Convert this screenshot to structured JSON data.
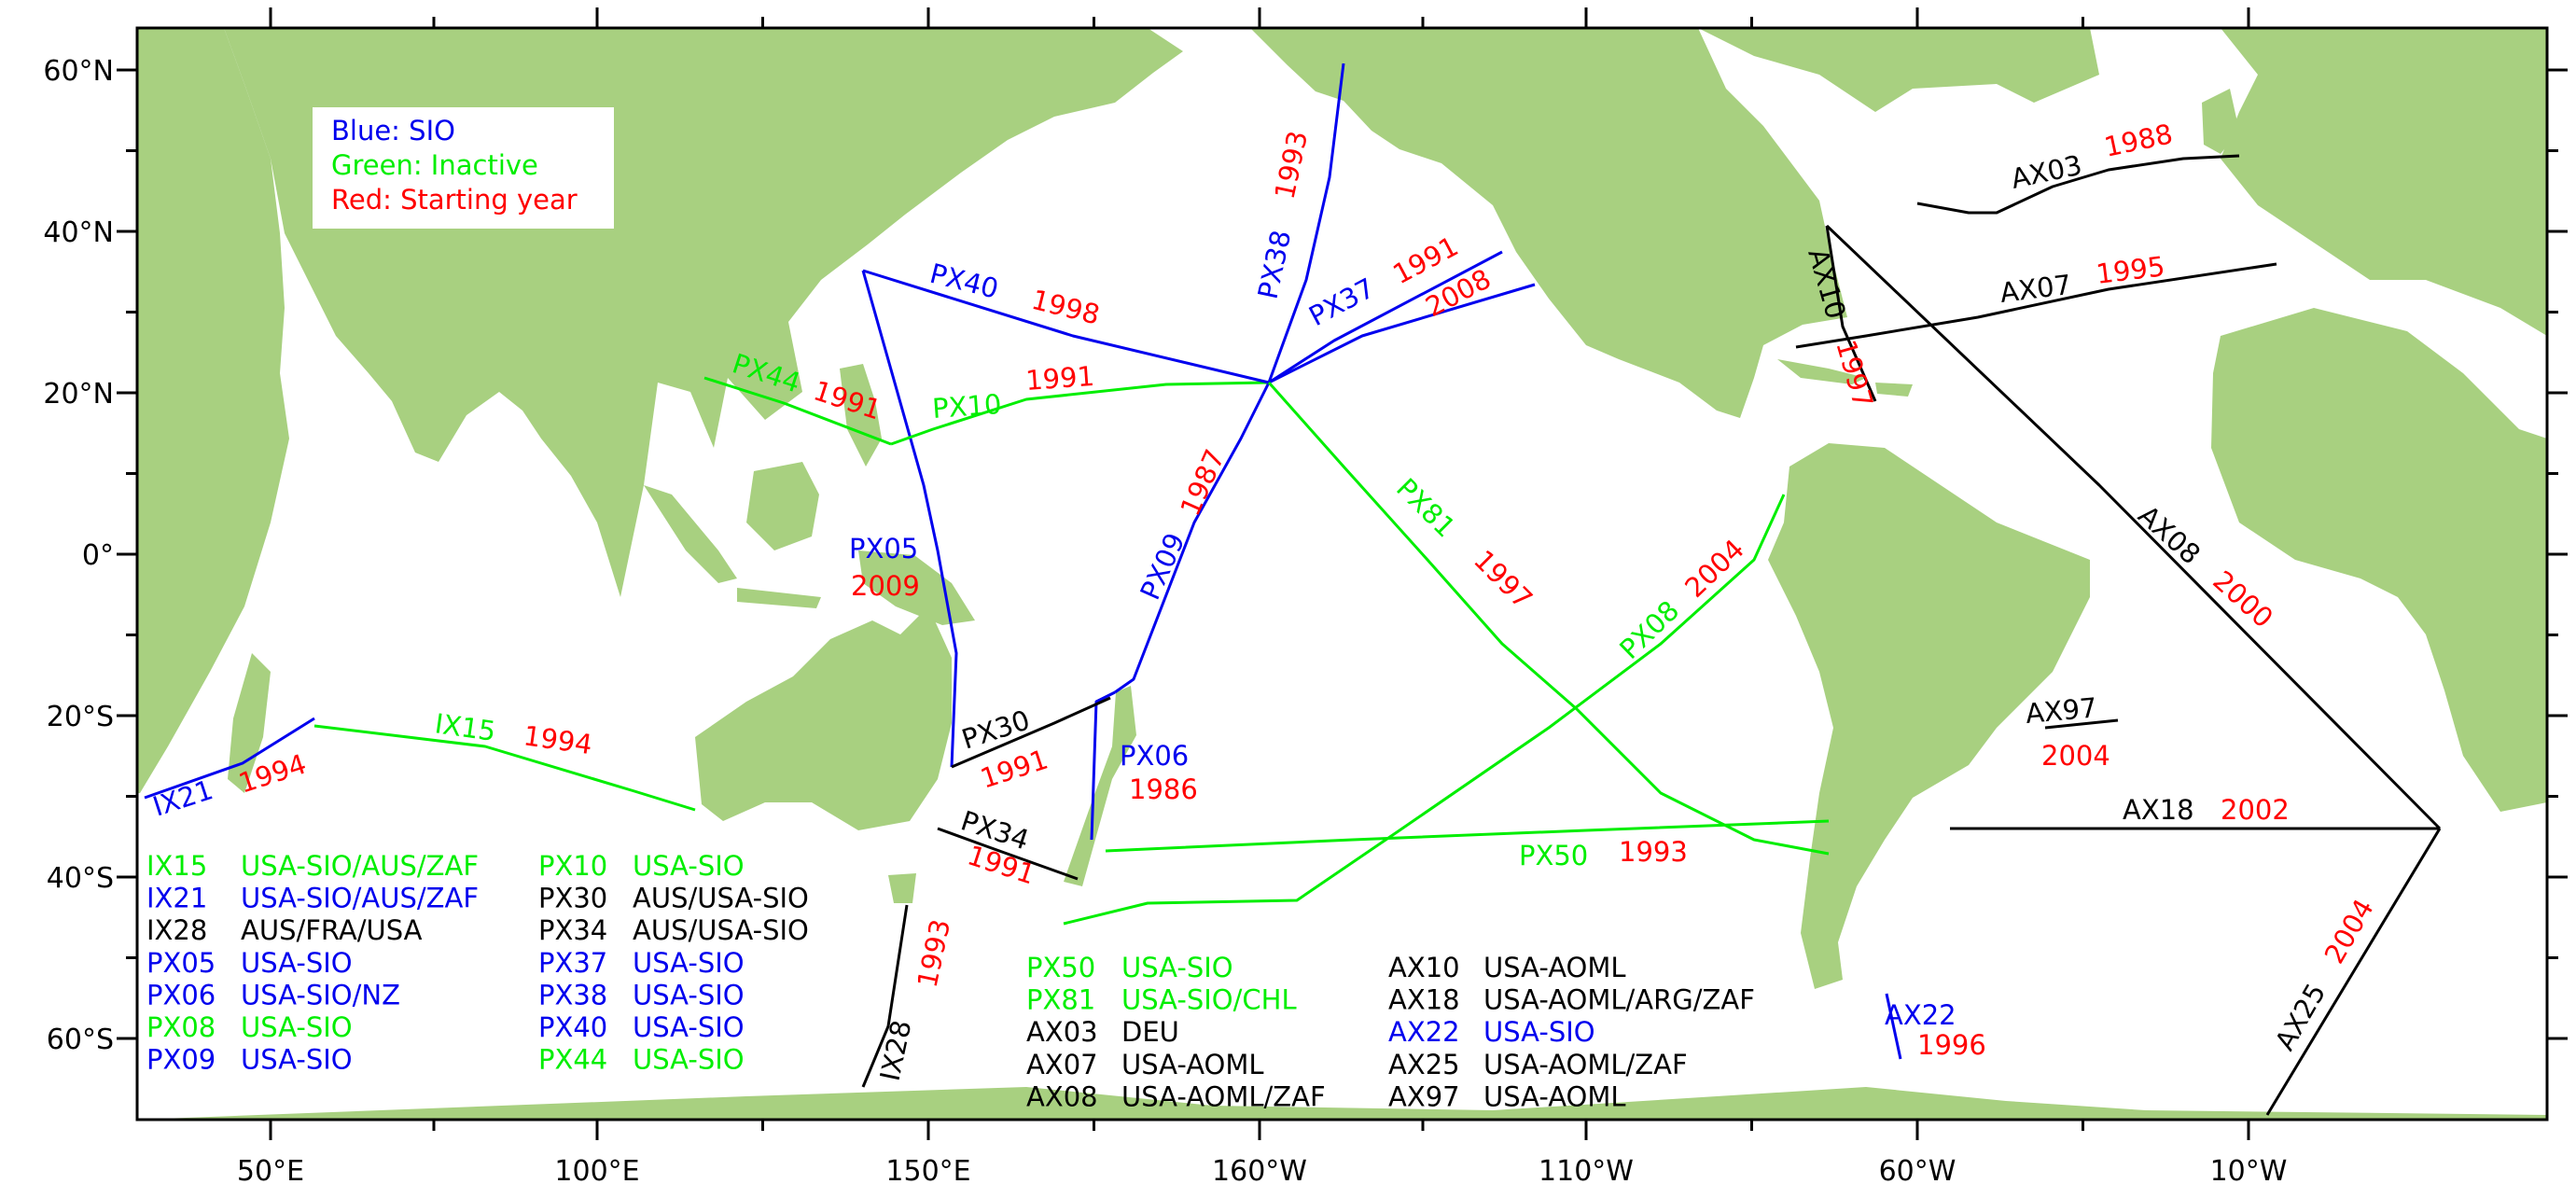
{
  "colors": {
    "land": "#a8d080",
    "sio": "#0000ee",
    "inactive": "#00ee00",
    "year": "#ff0000",
    "other": "#000000"
  },
  "legend": {
    "blue": "Blue: SIO",
    "green": "Green: Inactive",
    "red": "Red: Starting year"
  },
  "axes": {
    "x_ticks": [
      "50°E",
      "100°E",
      "150°E",
      "160°W",
      "110°W",
      "60°W",
      "10°W"
    ],
    "y_ticks": [
      "60°N",
      "40°N",
      "20°N",
      "0°",
      "20°S",
      "40°S",
      "60°S"
    ]
  },
  "lines": [
    {
      "id": "IX15",
      "year": "1994",
      "group": "inactive"
    },
    {
      "id": "IX21",
      "year": "1994",
      "group": "sio"
    },
    {
      "id": "IX28",
      "year": "1993",
      "group": "other"
    },
    {
      "id": "PX05",
      "year": "2009",
      "group": "sio"
    },
    {
      "id": "PX06",
      "year": "1986",
      "group": "sio"
    },
    {
      "id": "PX08",
      "year": "2004",
      "group": "inactive"
    },
    {
      "id": "PX09",
      "year": "1987",
      "group": "sio"
    },
    {
      "id": "PX10",
      "year": "1991",
      "group": "inactive"
    },
    {
      "id": "PX30",
      "year": "1991",
      "group": "other"
    },
    {
      "id": "PX34",
      "year": "1991",
      "group": "other"
    },
    {
      "id": "PX37",
      "year": "1991",
      "year2": "2008",
      "group": "sio"
    },
    {
      "id": "PX38",
      "year": "1993",
      "group": "sio"
    },
    {
      "id": "PX40",
      "year": "1998",
      "group": "sio"
    },
    {
      "id": "PX44",
      "year": "1991",
      "group": "inactive"
    },
    {
      "id": "PX50",
      "year": "1993",
      "group": "inactive"
    },
    {
      "id": "PX81",
      "year": "1997",
      "group": "inactive"
    },
    {
      "id": "AX03",
      "year": "1988",
      "group": "other"
    },
    {
      "id": "AX07",
      "year": "1995",
      "group": "other"
    },
    {
      "id": "AX08",
      "year": "2000",
      "group": "other"
    },
    {
      "id": "AX10",
      "year": "1997",
      "group": "other"
    },
    {
      "id": "AX18",
      "year": "2002",
      "group": "other"
    },
    {
      "id": "AX22",
      "year": "1996",
      "group": "sio"
    },
    {
      "id": "AX25",
      "year": "2004",
      "group": "other"
    },
    {
      "id": "AX97",
      "year": "2004",
      "group": "other"
    }
  ],
  "operators": [
    {
      "id": "IX15",
      "org": "USA-SIO/AUS/ZAF",
      "group": "inactive"
    },
    {
      "id": "IX21",
      "org": "USA-SIO/AUS/ZAF",
      "group": "sio"
    },
    {
      "id": "IX28",
      "org": "AUS/FRA/USA",
      "group": "other"
    },
    {
      "id": "PX05",
      "org": "USA-SIO",
      "group": "sio"
    },
    {
      "id": "PX06",
      "org": "USA-SIO/NZ",
      "group": "sio"
    },
    {
      "id": "PX08",
      "org": "USA-SIO",
      "group": "inactive"
    },
    {
      "id": "PX09",
      "org": "USA-SIO",
      "group": "sio"
    },
    {
      "id": "PX10",
      "org": "USA-SIO",
      "group": "inactive"
    },
    {
      "id": "PX30",
      "org": "AUS/USA-SIO",
      "group": "other"
    },
    {
      "id": "PX34",
      "org": "AUS/USA-SIO",
      "group": "other"
    },
    {
      "id": "PX37",
      "org": "USA-SIO",
      "group": "sio"
    },
    {
      "id": "PX38",
      "org": "USA-SIO",
      "group": "sio"
    },
    {
      "id": "PX40",
      "org": "USA-SIO",
      "group": "sio"
    },
    {
      "id": "PX44",
      "org": "USA-SIO",
      "group": "inactive"
    },
    {
      "id": "PX50",
      "org": "USA-SIO",
      "group": "inactive"
    },
    {
      "id": "PX81",
      "org": "USA-SIO/CHL",
      "group": "inactive"
    },
    {
      "id": "AX03",
      "org": "DEU",
      "group": "other"
    },
    {
      "id": "AX07",
      "org": "USA-AOML",
      "group": "other"
    },
    {
      "id": "AX08",
      "org": "USA-AOML/ZAF",
      "group": "other"
    },
    {
      "id": "AX10",
      "org": "USA-AOML",
      "group": "other"
    },
    {
      "id": "AX18",
      "org": "USA-AOML/ARG/ZAF",
      "group": "other"
    },
    {
      "id": "AX22",
      "org": "USA-SIO",
      "group": "sio"
    },
    {
      "id": "AX25",
      "org": "USA-AOML/ZAF",
      "group": "other"
    },
    {
      "id": "AX97",
      "org": "USA-AOML",
      "group": "other"
    }
  ]
}
